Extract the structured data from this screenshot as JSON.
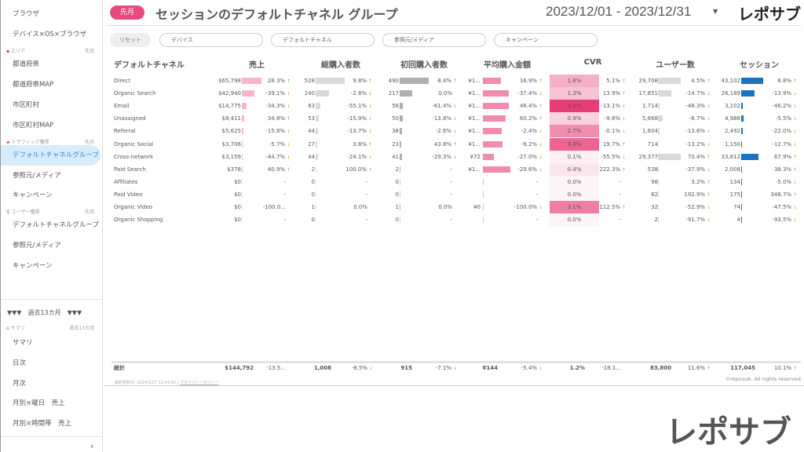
{
  "sidebar": {
    "items_top": [
      "ブラウザ",
      "デバイス×OS×ブラウザ"
    ],
    "sec_area": {
      "label": "エリア",
      "period": "先月"
    },
    "items_area": [
      "都道府県",
      "都道府県MAP",
      "市区町村",
      "市区町村MAP"
    ],
    "sec_traffic": {
      "label": "トラフィック獲得",
      "period": "先月"
    },
    "items_traffic": [
      "デフォルトチャネルグループ",
      "参照元/メディア",
      "キャンペーン"
    ],
    "sec_user": {
      "label": "ユーザー獲得",
      "period": "先月"
    },
    "items_user": [
      "デフォルトチャネルグループ",
      "参照元/メディア",
      "キャンペーン"
    ],
    "group_header": "▼▼▼　過去13カ月　▼▼▼",
    "sec_summary": {
      "label": "サマリ",
      "period": "過去13カ月"
    },
    "items_summary": [
      "サマリ",
      "日次",
      "月次",
      "月別×曜日　売上",
      "月別×時間帯　売上"
    ],
    "collapse": "‹"
  },
  "header": {
    "badge": "先月",
    "title": "セッションのデフォルトチャネル グループ",
    "date_range": "2023/12/01 - 2023/12/31",
    "caret": "▼",
    "logo": "レポサブ"
  },
  "filters": {
    "reset": "リセット",
    "items": [
      "デバイス",
      "デフォルトチャネル",
      "参照元/メディア",
      "キャンペーン"
    ]
  },
  "columns": [
    "デフォルトチャネル",
    "売上",
    "総購入者数",
    "初回購入者数",
    "平均購入金額",
    "CVR",
    "ユーザー数",
    "セッション"
  ],
  "colors": {
    "sales_bar": "#f7b6cd",
    "buyers_bar": "#d9d9d9",
    "first_bar": "#b0b0b0",
    "avg_bar": "#f08cb0",
    "cvr_max": "#e83e76",
    "users_bar": "#d9d9d9",
    "sessions_bar": "#1a73c0",
    "up": "#6cb33e",
    "down": "#f29b1a"
  },
  "rows": [
    {
      "name": "Direct",
      "sales": "$65,798",
      "sales_pct": "28.3%",
      "sales_t": "up",
      "buyers": "528",
      "buyers_pct": "9.8%",
      "buyers_t": "up",
      "first": "490",
      "first_pct": "8.4%",
      "first_t": "up",
      "avg": "¥1...",
      "avg_bar": 0.66,
      "avg_pct": "16.9%",
      "avg_t": "up",
      "cvr": "1.8%",
      "cvr_pct": "5.1%",
      "cvr_t": "up",
      "users": "29,708",
      "users_pct": "4.5%",
      "users_t": "up",
      "sessions": "43,102",
      "sessions_pct": "8.8%",
      "sessions_t": "up"
    },
    {
      "name": "Organic Search",
      "sales": "$42,940",
      "sales_pct": "-39.1%",
      "sales_t": "down",
      "buyers": "240",
      "buyers_pct": "-2.8%",
      "buyers_t": "down",
      "first": "217",
      "first_pct": "0.0%",
      "first_t": "",
      "avg": "¥1...",
      "avg_bar": 0.94,
      "avg_pct": "-37.4%",
      "avg_t": "down",
      "cvr": "1.3%",
      "cvr_pct": "13.9%",
      "cvr_t": "up",
      "users": "17,851",
      "users_pct": "-14.7%",
      "users_t": "down",
      "sessions": "26,189",
      "sessions_pct": "-13.9%",
      "sessions_t": "down"
    },
    {
      "name": "Email",
      "sales": "$14,775",
      "sales_pct": "-34.3%",
      "sales_t": "down",
      "buyers": "83",
      "buyers_pct": "-55.1%",
      "buyers_t": "down",
      "first": "56",
      "first_pct": "-61.4%",
      "first_t": "down",
      "avg": "¥1...",
      "avg_bar": 0.94,
      "avg_pct": "46.4%",
      "avg_t": "up",
      "cvr": "4.8%",
      "cvr_pct": "-13.1%",
      "cvr_t": "down",
      "users": "1,714",
      "users_pct": "-48.3%",
      "users_t": "down",
      "sessions": "3,102",
      "sessions_pct": "-46.2%",
      "sessions_t": "down"
    },
    {
      "name": "Unassigned",
      "sales": "$8,411",
      "sales_pct": "34.8%",
      "sales_t": "up",
      "buyers": "53",
      "buyers_pct": "-15.9%",
      "buyers_t": "down",
      "first": "50",
      "first_pct": "-13.8%",
      "first_t": "down",
      "avg": "¥1...",
      "avg_bar": 0.83,
      "avg_pct": "60.2%",
      "avg_t": "up",
      "cvr": "0.9%",
      "cvr_pct": "-9.8%",
      "cvr_t": "down",
      "users": "5,668",
      "users_pct": "-6.7%",
      "users_t": "down",
      "sessions": "4,988",
      "sessions_pct": "-5.5%",
      "sessions_t": "down"
    },
    {
      "name": "Referral",
      "sales": "$5,625",
      "sales_pct": "-15.8%",
      "sales_t": "down",
      "buyers": "44",
      "buyers_pct": "-13.7%",
      "buyers_t": "down",
      "first": "38",
      "first_pct": "-2.6%",
      "first_t": "down",
      "avg": "¥1...",
      "avg_bar": 0.68,
      "avg_pct": "-2.4%",
      "avg_t": "down",
      "cvr": "2.7%",
      "cvr_pct": "-0.1%",
      "cvr_t": "down",
      "users": "1,604",
      "users_pct": "-13.6%",
      "users_t": "down",
      "sessions": "2,492",
      "sessions_pct": "-22.0%",
      "sessions_t": "down"
    },
    {
      "name": "Organic Social",
      "sales": "$3,706",
      "sales_pct": "-5.7%",
      "sales_t": "down",
      "buyers": "27",
      "buyers_pct": "3.8%",
      "buyers_t": "up",
      "first": "23",
      "first_pct": "43.8%",
      "first_t": "up",
      "avg": "¥1...",
      "avg_bar": 0.72,
      "avg_pct": "-9.2%",
      "avg_t": "down",
      "cvr": "3.8%",
      "cvr_pct": "19.7%",
      "cvr_t": "up",
      "users": "714",
      "users_pct": "-13.2%",
      "users_t": "down",
      "sessions": "1,150",
      "sessions_pct": "-12.7%",
      "sessions_t": "down"
    },
    {
      "name": "Cross-network",
      "sales": "$3,159",
      "sales_pct": "-44.7%",
      "sales_t": "down",
      "buyers": "44",
      "buyers_pct": "-24.1%",
      "buyers_t": "down",
      "first": "41",
      "first_pct": "-29.3%",
      "first_t": "down",
      "avg": "¥72",
      "avg_bar": 0.4,
      "avg_pct": "-27.0%",
      "avg_t": "down",
      "cvr": "0.1%",
      "cvr_pct": "-55.5%",
      "cvr_t": "down",
      "users": "29,377",
      "users_pct": "70.4%",
      "users_t": "up",
      "sessions": "33,812",
      "sessions_pct": "67.9%",
      "sessions_t": "up"
    },
    {
      "name": "Paid Search",
      "sales": "$378",
      "sales_pct": "40.9%",
      "sales_t": "up",
      "buyers": "2",
      "buyers_pct": "100.0%",
      "buyers_t": "up",
      "first": "2",
      "first_pct": "-",
      "first_t": "",
      "avg": "¥1...",
      "avg_bar": 1.0,
      "avg_pct": "-29.6%",
      "avg_t": "down",
      "cvr": "0.4%",
      "cvr_pct": "222.3%",
      "cvr_t": "up",
      "users": "538",
      "users_pct": "-37.9%",
      "users_t": "down",
      "sessions": "2,008",
      "sessions_pct": "38.3%",
      "sessions_t": "up"
    },
    {
      "name": "Affiliates",
      "sales": "$0",
      "sales_pct": "-",
      "sales_t": "",
      "buyers": "0",
      "buyers_pct": "-",
      "buyers_t": "",
      "first": "0",
      "first_pct": "-",
      "first_t": "",
      "avg": "",
      "avg_bar": 0,
      "avg_pct": "-",
      "avg_t": "",
      "cvr": "0.0%",
      "cvr_pct": "-",
      "cvr_t": "",
      "users": "98",
      "users_pct": "3.2%",
      "users_t": "up",
      "sessions": "134",
      "sessions_pct": "-5.0%",
      "sessions_t": "down"
    },
    {
      "name": "Paid Video",
      "sales": "$0",
      "sales_pct": "-",
      "sales_t": "",
      "buyers": "0",
      "buyers_pct": "-",
      "buyers_t": "",
      "first": "0",
      "first_pct": "-",
      "first_t": "",
      "avg": "",
      "avg_bar": 0,
      "avg_pct": "-",
      "avg_t": "",
      "cvr": "0.0%",
      "cvr_pct": "-",
      "cvr_t": "",
      "users": "82",
      "users_pct": "192.9%",
      "users_t": "up",
      "sessions": "175",
      "sessions_pct": "348.7%",
      "sessions_t": "up"
    },
    {
      "name": "Organic Video",
      "sales": "$0",
      "sales_pct": "-100.0...",
      "sales_t": "",
      "buyers": "1",
      "buyers_pct": "0.0%",
      "buyers_t": "",
      "first": "1",
      "first_pct": "0.0%",
      "first_t": "",
      "avg": "¥0",
      "avg_bar": 0,
      "avg_pct": "-100.0%",
      "avg_t": "down",
      "cvr": "3.1%",
      "cvr_pct": "112.5%",
      "cvr_t": "up",
      "users": "32",
      "users_pct": "-52.9%",
      "users_t": "down",
      "sessions": "74",
      "sessions_pct": "-47.5%",
      "sessions_t": "down"
    },
    {
      "name": "Organic Shopping",
      "sales": "$0",
      "sales_pct": "-",
      "sales_t": "",
      "buyers": "0",
      "buyers_pct": "-",
      "buyers_t": "",
      "first": "0",
      "first_pct": "-",
      "first_t": "",
      "avg": "",
      "avg_bar": 0,
      "avg_pct": "-",
      "avg_t": "",
      "cvr": "0.0%",
      "cvr_pct": "-",
      "cvr_t": "",
      "users": "2",
      "users_pct": "-91.7%",
      "users_t": "down",
      "sessions": "4",
      "sessions_pct": "-93.5%",
      "sessions_t": "down"
    }
  ],
  "total": {
    "label": "総計",
    "sales": "$144,792",
    "sales_pct": "-13.5...",
    "sales_t": "",
    "buyers": "1,008",
    "buyers_pct": "-8.5%",
    "buyers_t": "down",
    "first": "915",
    "first_pct": "-7.1%",
    "first_t": "down",
    "avg": "¥144",
    "avg_pct": "-5.4%",
    "avg_t": "down",
    "cvr": "1.2%",
    "cvr_pct": "-18.1...",
    "cvr_t": "",
    "users": "83,800",
    "users_pct": "11.6%",
    "users_t": "up",
    "sessions": "117,045",
    "sessions_pct": "10.1%",
    "sessions_t": "up"
  },
  "footer": {
    "updated": "最終更新日: 2024/1/27 11:54:56",
    "sep": "|",
    "privacy": "プライバシーポリシー",
    "copyright": "©reposub. All rights reserved."
  },
  "watermark_logo": "レポサブ"
}
